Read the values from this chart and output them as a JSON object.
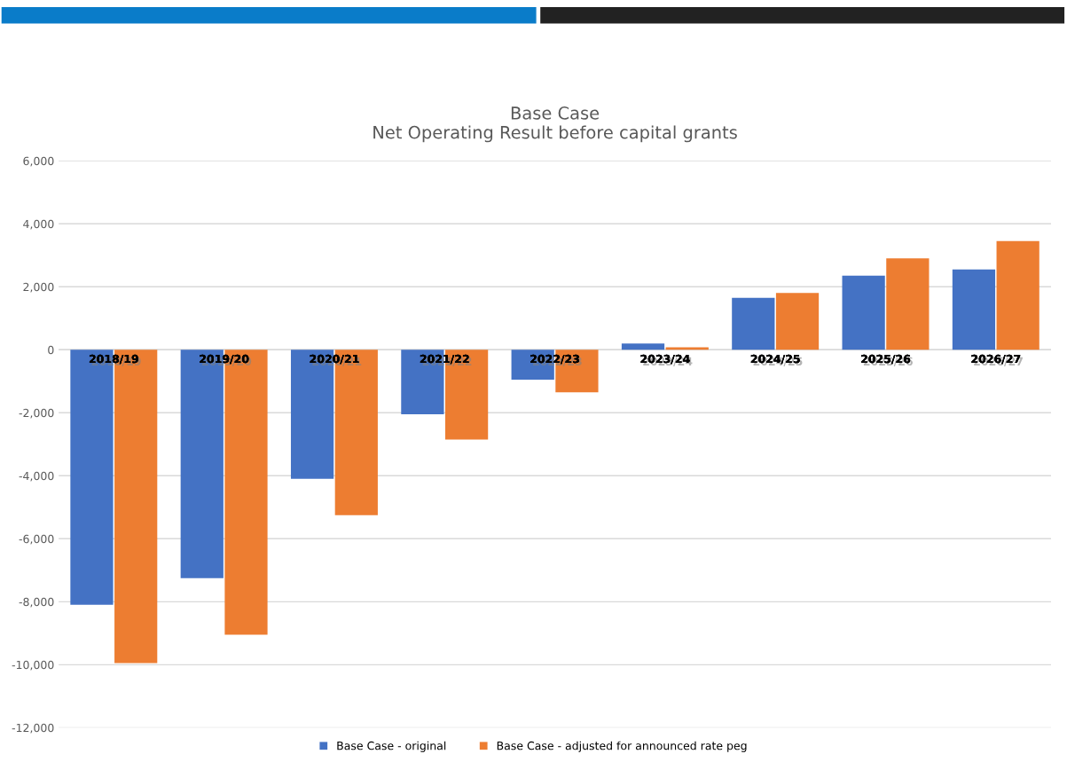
{
  "chart_data": {
    "type": "bar",
    "title": "Base Case\nNet Operating Result before capital grants",
    "categories": [
      "2018/19",
      "2019/20",
      "2020/21",
      "2021/22",
      "2022/23",
      "2023/24",
      "2024/25",
      "2025/26",
      "2026/27"
    ],
    "series": [
      {
        "name": "Base Case - original",
        "color": "#4472c4",
        "values": [
          -8100,
          -7250,
          -4100,
          -2050,
          -950,
          200,
          1650,
          2350,
          2550
        ]
      },
      {
        "name": "Base Case - adjusted for announced rate peg",
        "color": "#ed7d31",
        "values": [
          -9950,
          -9050,
          -5250,
          -2850,
          -1350,
          80,
          1800,
          2900,
          3450
        ]
      }
    ],
    "ylim": [
      -12000,
      6000
    ],
    "yticks": [
      {
        "value": -12000,
        "label": "-12,000"
      },
      {
        "value": -10000,
        "label": "-10,000"
      },
      {
        "value": -8000,
        "label": "-8,000"
      },
      {
        "value": -6000,
        "label": "-6,000"
      },
      {
        "value": -4000,
        "label": "-4,000"
      },
      {
        "value": -2000,
        "label": "-2,000"
      },
      {
        "value": 0,
        "label": "0"
      },
      {
        "value": 2000,
        "label": "2,000"
      },
      {
        "value": 4000,
        "label": "4,000"
      },
      {
        "value": 6000,
        "label": "6,000"
      }
    ],
    "grid": "y",
    "legend": "bottom"
  }
}
